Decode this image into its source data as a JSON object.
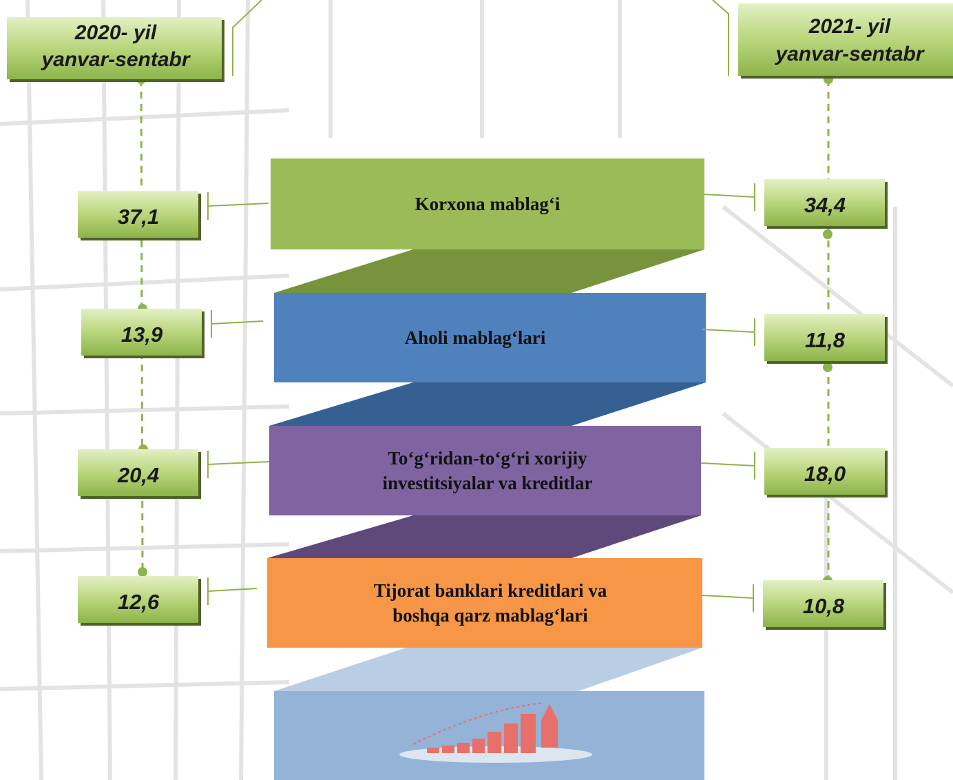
{
  "headers": [
    {
      "lines": [
        "2020- yil",
        "yanvar-sentabr"
      ]
    },
    {
      "lines": [
        "2021- yil",
        "yanvar-sentabr"
      ]
    }
  ],
  "items": [
    {
      "label": [
        "Korxona mablag‘i"
      ],
      "left": "37,1",
      "right": "34,4"
    },
    {
      "label": [
        "Aholi mablag‘lari"
      ],
      "left": "13,9",
      "right": "11,8"
    },
    {
      "label": [
        "To‘g‘ridan-to‘g‘ri xorijiy",
        "investitsiyalar va kreditlar"
      ],
      "left": "20,4",
      "right": "18,0"
    },
    {
      "label": [
        "Tijorat banklari kreditlari va",
        "boshqa qarz mablag‘lari"
      ],
      "left": "12,6",
      "right": "10,8"
    }
  ]
}
